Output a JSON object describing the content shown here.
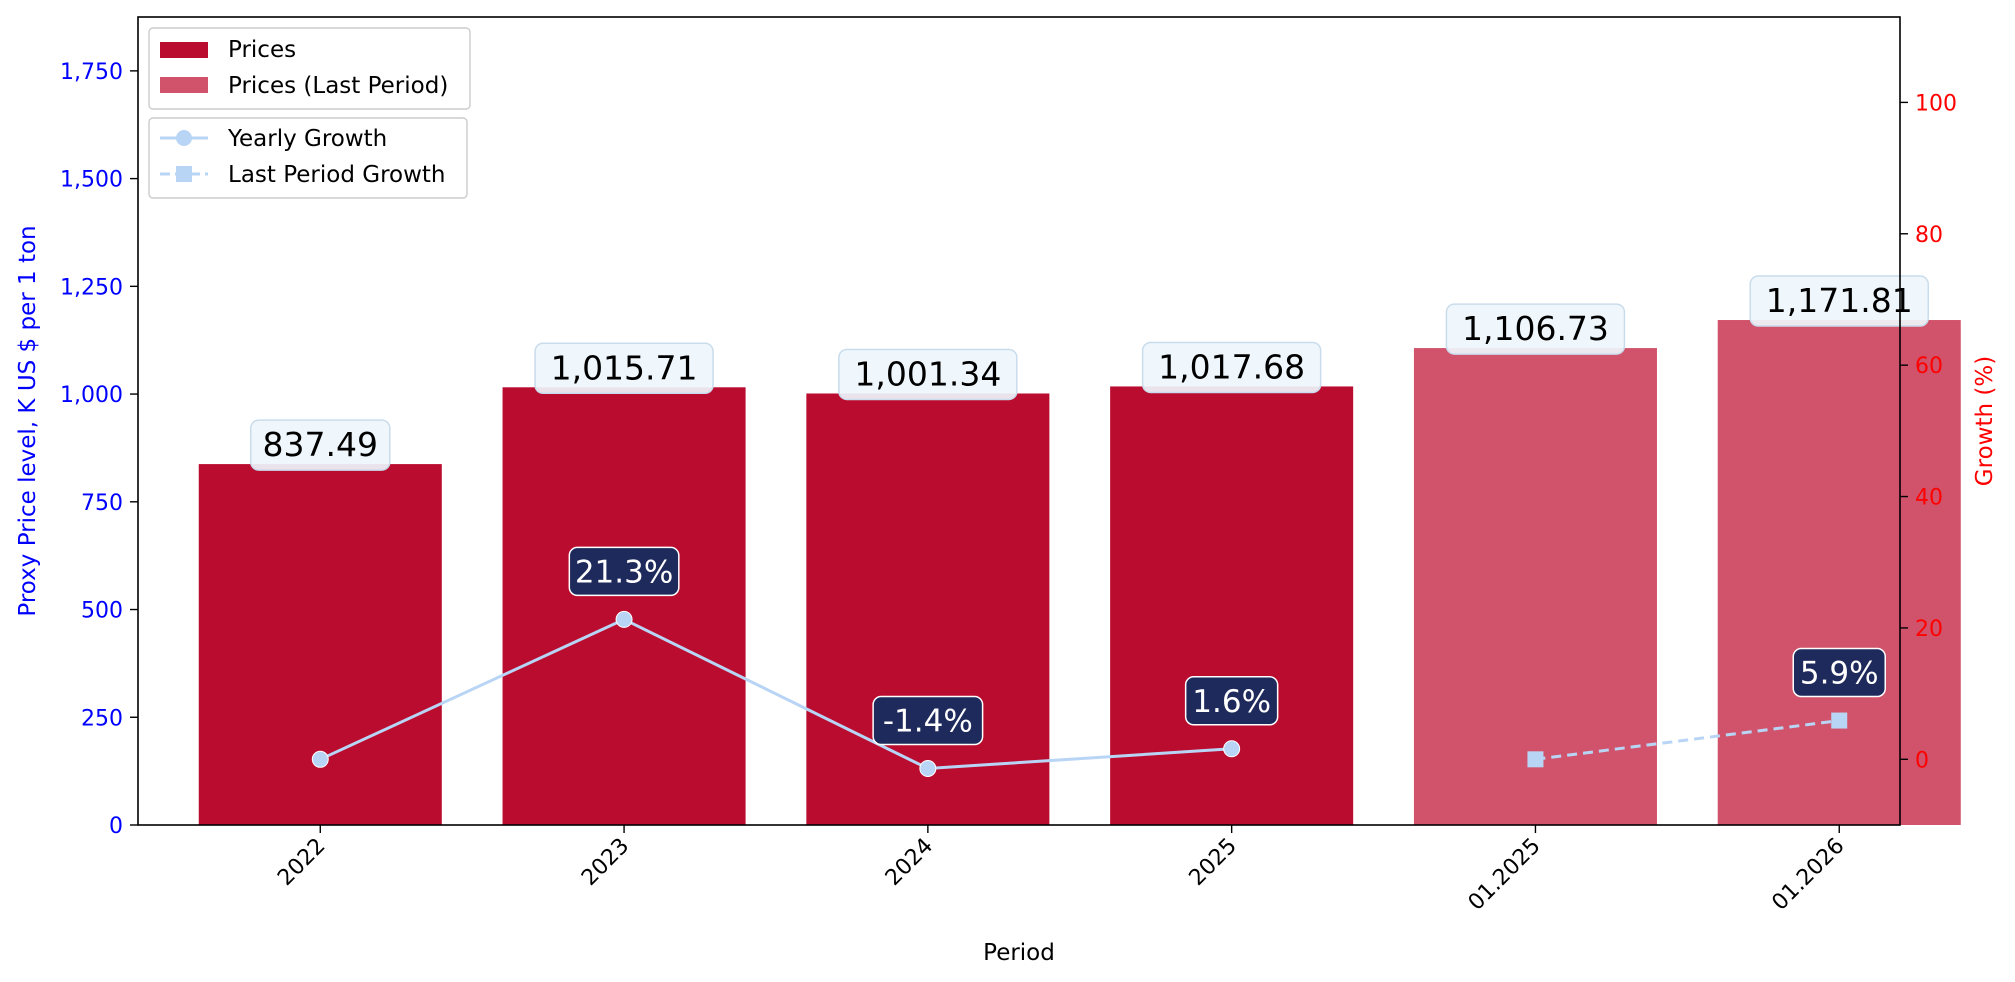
{
  "colors": {
    "bar": "#ba0c2f",
    "bar_last_period": "#d0536b",
    "growth_line": "#b9d5f5",
    "growth_label_bg": "#1f2a5c",
    "bar_label_bg": "#eef6fc",
    "left_axis": "#0000ff",
    "right_axis": "#ff0000"
  },
  "chart_data": {
    "type": "bar",
    "xlabel": "Period",
    "ylabel": "Proxy Price level, K US $ per 1 ton",
    "ylabel_right": "Growth (%)",
    "ylim": [
      0,
      1875
    ],
    "ylim_right": [
      -10,
      113
    ],
    "yticks": [
      "0",
      "250",
      "500",
      "750",
      "1,000",
      "1,250",
      "1,500",
      "1,750"
    ],
    "yticks_right": [
      "0",
      "20",
      "40",
      "60",
      "80",
      "100"
    ],
    "categories": [
      "2022",
      "2023",
      "2024",
      "2025",
      "01.2025",
      "01.2026"
    ],
    "series": [
      {
        "name": "Prices",
        "kind": "bar",
        "values": [
          837.49,
          1015.71,
          1001.34,
          1017.68,
          null,
          null
        ],
        "labels": [
          "837.49",
          "1,015.71",
          "1,001.34",
          "1,017.68",
          "",
          ""
        ]
      },
      {
        "name": "Prices (Last Period)",
        "kind": "bar",
        "values": [
          null,
          null,
          null,
          null,
          1106.73,
          1171.81
        ],
        "labels": [
          "",
          "",
          "",
          "",
          "1,106.73",
          "1,171.81"
        ]
      },
      {
        "name": "Yearly Growth",
        "kind": "line",
        "axis": "right",
        "values": [
          0,
          21.3,
          -1.4,
          1.6,
          null,
          null
        ],
        "labels": [
          "",
          "21.3%",
          "-1.4%",
          "1.6%",
          "",
          ""
        ]
      },
      {
        "name": "Last Period Growth",
        "kind": "line",
        "axis": "right",
        "style": "dashed",
        "values": [
          null,
          null,
          null,
          null,
          0,
          5.9
        ],
        "labels": [
          "",
          "",
          "",
          "",
          "",
          "5.9%"
        ]
      }
    ],
    "legend": [
      "Prices",
      "Prices (Last Period)",
      "Yearly Growth",
      "Last Period Growth"
    ],
    "legend_placement": "top-left",
    "grid": false
  }
}
